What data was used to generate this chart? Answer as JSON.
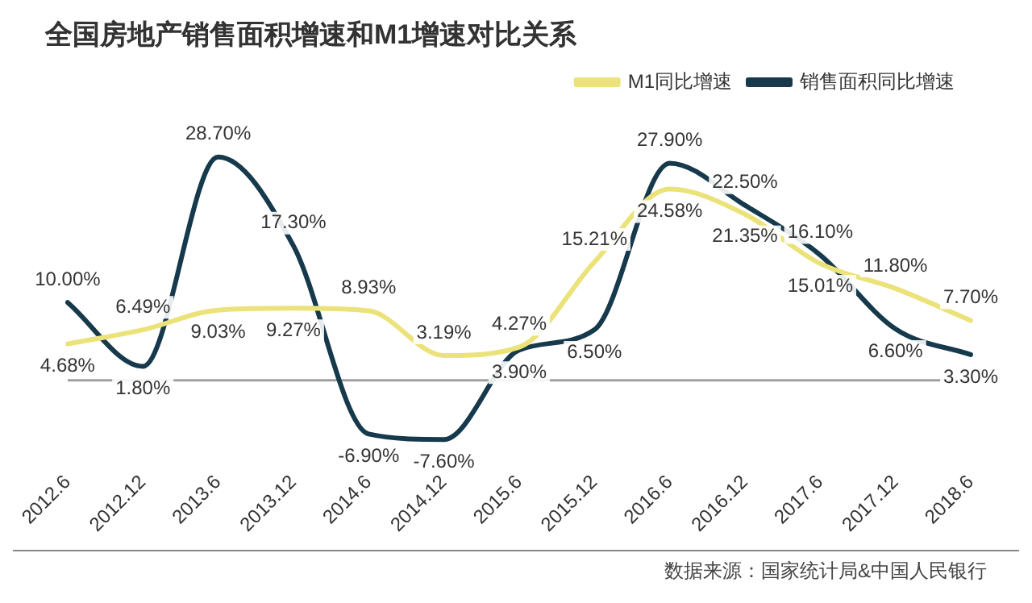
{
  "chart_data": {
    "type": "line",
    "title": "全国房地产销售面积增速和M1增速对比关系",
    "categories": [
      "2012.6",
      "2012.12",
      "2013.6",
      "2013.12",
      "2014.6",
      "2014.12",
      "2015.6",
      "2015.12",
      "2016.6",
      "2016.12",
      "2017.6",
      "2017.12",
      "2018.6"
    ],
    "series": [
      {
        "name": "M1同比增速",
        "color": "#ebe27a",
        "values": [
          4.68,
          6.49,
          9.03,
          9.27,
          8.93,
          3.19,
          4.27,
          15.21,
          24.58,
          21.35,
          15.01,
          11.8,
          7.7
        ],
        "value_labels": [
          "4.68%",
          "6.49%",
          "9.03%",
          "9.27%",
          "8.93%",
          "3.19%",
          "4.27%",
          "15.21%",
          "24.58%",
          "21.35%",
          "15.01%",
          "11.80%",
          "7.70%"
        ]
      },
      {
        "name": "销售面积同比增速",
        "color": "#163a4c",
        "values": [
          10,
          1.8,
          28.7,
          17.3,
          -6.9,
          -7.6,
          3.9,
          6.5,
          27.9,
          22.5,
          16.1,
          6.6,
          3.3
        ],
        "value_labels": [
          "10.00%",
          "1.80%",
          "28.70%",
          "17.30%",
          "-6.90%",
          "-7.60%",
          "3.90%",
          "6.50%",
          "27.90%",
          "22.50%",
          "16.10%",
          "6.60%",
          "3.30%"
        ]
      }
    ],
    "ref_lines": [
      {
        "axis": "y",
        "value": 0,
        "color": "#a0a0a0"
      }
    ],
    "legend": "top right",
    "grid": false,
    "marker": "none",
    "line_style": "solid",
    "tick_labels": "x",
    "annotations": [
      "数据来源：国家统计局&中国人民银行"
    ]
  }
}
